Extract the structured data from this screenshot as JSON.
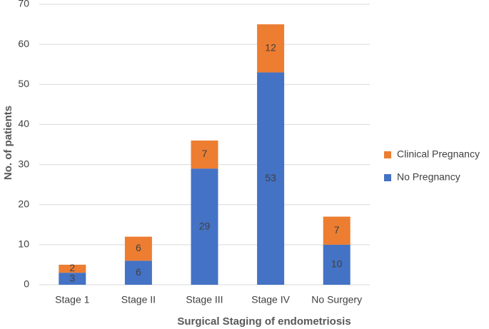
{
  "chart_data": {
    "type": "stacked_bar",
    "x_label": "Surgical Staging of endometriosis",
    "y_label": "No. of patients",
    "categories": [
      "Stage 1",
      "Stage II",
      "Stage III",
      "Stage IV",
      "No Surgery"
    ],
    "series": [
      {
        "name": "No Pregnancy",
        "color": "#4472c4",
        "values": [
          3,
          6,
          29,
          53,
          10
        ]
      },
      {
        "name": "Clinical Pregnancy",
        "color": "#ed7d31",
        "values": [
          2,
          6,
          7,
          12,
          7
        ]
      }
    ],
    "ylim": [
      0,
      70
    ],
    "yticks": [
      0,
      10,
      20,
      30,
      40,
      50,
      60,
      70
    ],
    "grid": true,
    "legend": "right"
  }
}
